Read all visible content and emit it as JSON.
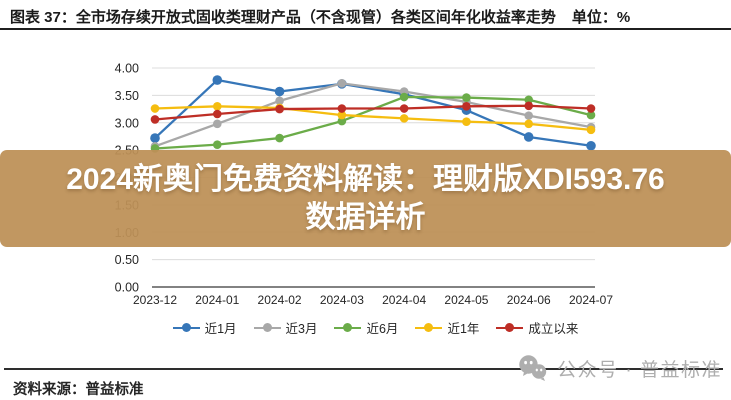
{
  "header": {
    "title": "图表 37：全市场存续开放式固收类理财产品（不含现管）各类区间年化收益率走势",
    "unit_label": "单位：%"
  },
  "banner": {
    "line1": "2024新奥门免费资料解读：理财版XDI593.76",
    "line2": "数据详析",
    "bg_color": "#BD9157",
    "text_color": "#FFFFFF"
  },
  "chart_data": {
    "type": "line",
    "title": "全市场存续开放式固收类理财产品（不含现管）各类区间年化收益率走势",
    "unit": "%",
    "categories": [
      "2023-12",
      "2024-01",
      "2024-02",
      "2024-03",
      "2024-04",
      "2024-05",
      "2024-06",
      "2024-07"
    ],
    "series": [
      {
        "name": "近1月",
        "color": "#3676B8",
        "values": [
          2.72,
          3.78,
          3.57,
          3.71,
          3.52,
          3.23,
          2.74,
          2.58
        ]
      },
      {
        "name": "近3月",
        "color": "#A8A8A8",
        "values": [
          2.57,
          2.98,
          3.4,
          3.72,
          3.57,
          3.38,
          3.13,
          2.92
        ]
      },
      {
        "name": "近6月",
        "color": "#6BAC49",
        "values": [
          2.53,
          2.6,
          2.72,
          3.03,
          3.47,
          3.46,
          3.42,
          3.14
        ]
      },
      {
        "name": "近1年",
        "color": "#F5BD10",
        "values": [
          3.26,
          3.3,
          3.27,
          3.14,
          3.08,
          3.02,
          2.98,
          2.87
        ]
      },
      {
        "name": "成立以来",
        "color": "#BE2E26",
        "values": [
          3.06,
          3.16,
          3.25,
          3.26,
          3.26,
          3.3,
          3.31,
          3.26
        ]
      }
    ],
    "ylim": [
      0,
      4
    ],
    "ytick_step": 0.5,
    "grid": "horizontal",
    "legend_position": "bottom"
  },
  "footer": {
    "source": "资料来源：普益标准",
    "watermark": "公众号 · 普益标准"
  }
}
